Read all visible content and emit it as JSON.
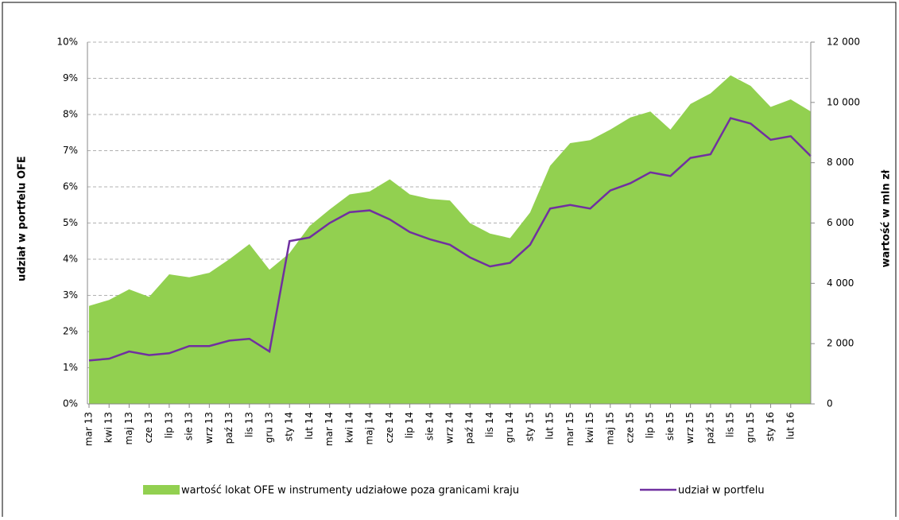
{
  "chart_data": {
    "type": "combo",
    "y_label": "udział w portfelu OFE",
    "y2_label": "wartość w mln zł",
    "categories": [
      "mar 13",
      "kwi 13",
      "maj 13",
      "cze 13",
      "lip 13",
      "sie 13",
      "wrz 13",
      "paź 13",
      "lis 13",
      "gru 13",
      "sty 14",
      "lut 14",
      "mar 14",
      "kwi 14",
      "maj 14",
      "cze 14",
      "lip 14",
      "sie 14",
      "wrz 14",
      "paź 14",
      "lis 14",
      "gru 14",
      "sty 15",
      "lut 15",
      "mar 15",
      "kwi 15",
      "maj 15",
      "cze 15",
      "lip 15",
      "sie 15",
      "wrz 15",
      "paź 15",
      "lis 15",
      "gru 15",
      "sty 16",
      "lut 16",
      null
    ],
    "series": [
      {
        "name": "wartość lokat OFE w instrumenty udziałowe poza granicami kraju",
        "type": "area",
        "axis": "y2",
        "color": "#92d050",
        "values": [
          3250,
          3450,
          3800,
          3550,
          4300,
          4200,
          4350,
          4800,
          5300,
          4450,
          5000,
          5900,
          6450,
          6950,
          7050,
          7450,
          6950,
          6800,
          6750,
          6000,
          5650,
          5500,
          6350,
          7900,
          8650,
          8750,
          9100,
          9500,
          9700,
          9100,
          9950,
          10300,
          10900,
          10550,
          9850,
          10100,
          9700
        ]
      },
      {
        "name": "udział w portfelu",
        "type": "line",
        "color": "#7030a0",
        "values": [
          1.2,
          1.25,
          1.45,
          1.35,
          1.4,
          1.6,
          1.6,
          1.75,
          1.8,
          1.45,
          4.5,
          4.6,
          5.0,
          5.3,
          5.35,
          5.1,
          4.75,
          4.55,
          4.4,
          4.05,
          3.8,
          3.9,
          4.4,
          5.4,
          5.5,
          5.4,
          5.9,
          6.1,
          6.4,
          6.3,
          6.8,
          6.9,
          7.9,
          7.75,
          7.3,
          7.4,
          6.85
        ]
      }
    ],
    "ylim": [
      0,
      10
    ],
    "yticks": [
      {
        "value": 0,
        "label": "0%"
      },
      {
        "value": 1,
        "label": "1%"
      },
      {
        "value": 2,
        "label": "2%"
      },
      {
        "value": 3,
        "label": "3%"
      },
      {
        "value": 4,
        "label": "4%"
      },
      {
        "value": 5,
        "label": "5%"
      },
      {
        "value": 6,
        "label": "6%"
      },
      {
        "value": 7,
        "label": "7%"
      },
      {
        "value": 8,
        "label": "8%"
      },
      {
        "value": 9,
        "label": "9%"
      },
      {
        "value": 10,
        "label": "10%"
      }
    ],
    "y2lim": [
      0,
      12000
    ],
    "y2ticks": [
      0,
      {
        "value": 2000,
        "label": "2 000"
      },
      {
        "value": 4000,
        "label": "4 000"
      },
      {
        "value": 6000,
        "label": "6 000"
      },
      {
        "value": 8000,
        "label": "8 000"
      },
      {
        "value": 10000,
        "label": "10 000"
      },
      {
        "value": 12000,
        "label": "12 000"
      }
    ],
    "grid": true
  }
}
